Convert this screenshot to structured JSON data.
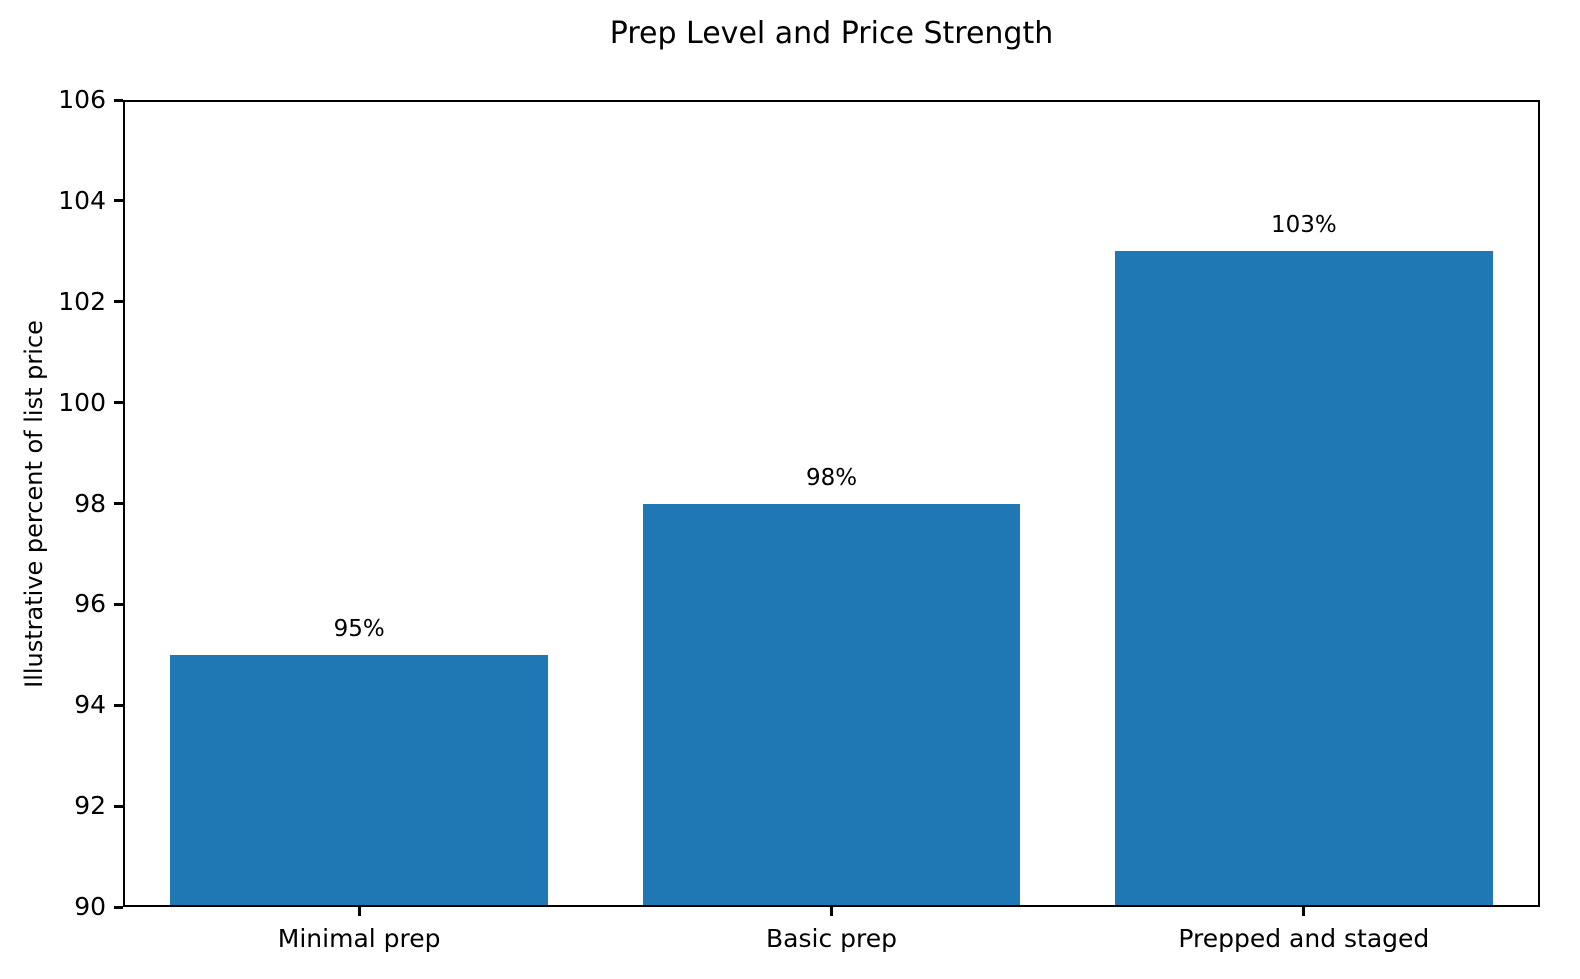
{
  "chart_data": {
    "type": "bar",
    "title": "Prep Level and Price Strength",
    "xlabel": "",
    "ylabel": "Illustrative percent of list price",
    "categories": [
      "Minimal prep",
      "Basic prep",
      "Prepped and staged"
    ],
    "values": [
      95,
      98,
      103
    ],
    "value_labels": [
      "95%",
      "98%",
      "103%"
    ],
    "ylim": [
      90,
      106
    ],
    "yticks": [
      90,
      92,
      94,
      96,
      98,
      100,
      102,
      104,
      106
    ],
    "bar_color": "#1f77b4",
    "grid": false,
    "legend": null,
    "background_color": "#ffffff",
    "text_color": "#000000"
  }
}
